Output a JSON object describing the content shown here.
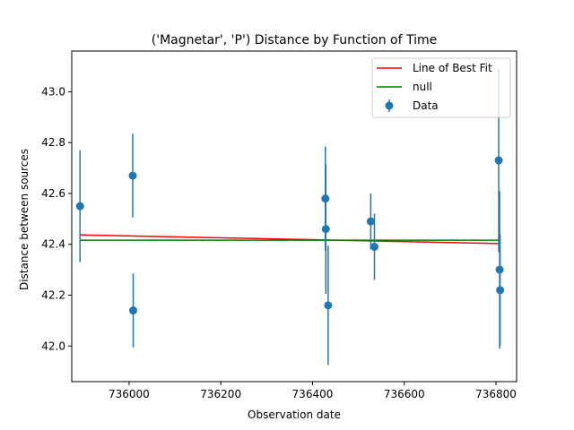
{
  "chart_data": {
    "type": "scatter",
    "title": "('Magnetar', 'P') Distance by Function of Time",
    "xlabel": "Observation date",
    "ylabel": "Distance between sources",
    "xlim": [
      735875,
      736845
    ],
    "ylim": [
      41.86,
      43.16
    ],
    "xticks": [
      736000,
      736200,
      736400,
      736600,
      736800
    ],
    "yticks": [
      42.0,
      42.2,
      42.4,
      42.6,
      42.8,
      43.0
    ],
    "xtick_labels": [
      "736000",
      "736200",
      "736400",
      "736600",
      "736800"
    ],
    "ytick_labels": [
      "42.0",
      "42.2",
      "42.4",
      "42.6",
      "42.8",
      "43.0"
    ],
    "grid": false,
    "legend_position": "top-right",
    "series": [
      {
        "name": "Data",
        "kind": "errorbar",
        "color": "#1f77b4",
        "x": [
          735893,
          736008,
          736009,
          736428,
          736429,
          736434,
          736527,
          736535,
          736806,
          736808,
          736809
        ],
        "y": [
          42.55,
          42.67,
          42.14,
          42.58,
          42.46,
          42.16,
          42.49,
          42.39,
          42.73,
          42.3,
          42.22
        ],
        "yerr": [
          0.22,
          0.165,
          0.145,
          0.205,
          0.255,
          0.235,
          0.11,
          0.13,
          0.36,
          0.31,
          0.22
        ]
      },
      {
        "name": "Line of Best Fit",
        "kind": "line",
        "color": "#ff0000",
        "x": [
          735893,
          736809
        ],
        "y": [
          42.437,
          42.403
        ]
      },
      {
        "name": "null",
        "kind": "line",
        "color": "#008000",
        "x": [
          735893,
          736809
        ],
        "y": [
          42.416,
          42.416
        ]
      }
    ]
  }
}
